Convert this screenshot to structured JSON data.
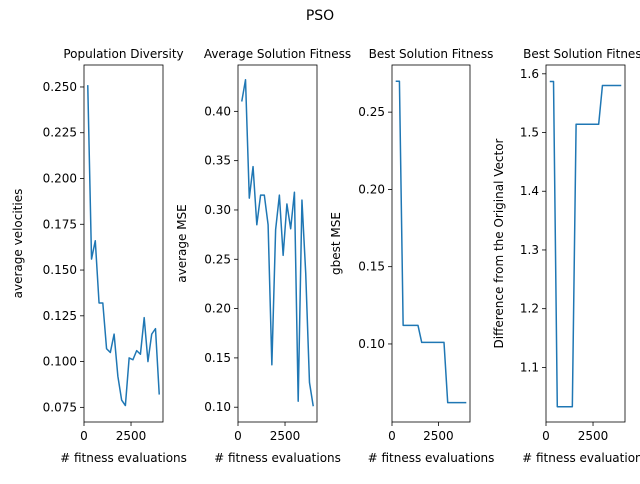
{
  "figure": {
    "suptitle": "PSO",
    "line_color": "#1f77b4"
  },
  "chart_data": [
    {
      "type": "line",
      "title": "Population Diversity",
      "xlabel": "# fitness evaluations",
      "ylabel": "average velocities",
      "xlim": [
        0,
        4200
      ],
      "ylim": [
        0.067,
        0.262
      ],
      "xticks": [
        0,
        2500
      ],
      "yticks": [
        0.075,
        0.1,
        0.125,
        0.15,
        0.175,
        0.2,
        0.225,
        0.25
      ],
      "ytick_labels": [
        "0.075",
        "0.100",
        "0.125",
        "0.150",
        "0.175",
        "0.200",
        "0.225",
        "0.250"
      ],
      "series": [
        {
          "x": [
            200,
            400,
            600,
            800,
            1000,
            1200,
            1400,
            1600,
            1800,
            2000,
            2200,
            2400,
            2600,
            2800,
            3000,
            3200,
            3400,
            3600,
            3800,
            4000
          ],
          "y": [
            0.251,
            0.156,
            0.166,
            0.132,
            0.132,
            0.107,
            0.105,
            0.115,
            0.092,
            0.079,
            0.076,
            0.102,
            0.101,
            0.106,
            0.104,
            0.124,
            0.1,
            0.115,
            0.118,
            0.082
          ]
        }
      ]
    },
    {
      "type": "line",
      "title": "Average Solution Fitness",
      "xlabel": "# fitness evaluations",
      "ylabel": "average MSE",
      "xlim": [
        0,
        4200
      ],
      "ylim": [
        0.085,
        0.447
      ],
      "xticks": [
        0,
        2500
      ],
      "yticks": [
        0.1,
        0.15,
        0.2,
        0.25,
        0.3,
        0.35,
        0.4
      ],
      "ytick_labels": [
        "0.10",
        "0.15",
        "0.20",
        "0.25",
        "0.30",
        "0.35",
        "0.40"
      ],
      "series": [
        {
          "x": [
            200,
            400,
            600,
            800,
            1000,
            1200,
            1400,
            1600,
            1800,
            2000,
            2200,
            2400,
            2600,
            2800,
            3000,
            3200,
            3400,
            3600,
            3800,
            4000
          ],
          "y": [
            0.41,
            0.432,
            0.312,
            0.344,
            0.285,
            0.315,
            0.315,
            0.285,
            0.143,
            0.28,
            0.315,
            0.254,
            0.306,
            0.281,
            0.318,
            0.106,
            0.31,
            0.236,
            0.125,
            0.101
          ]
        }
      ]
    },
    {
      "type": "line",
      "title": "Best Solution Fitness",
      "xlabel": "# fitness evaluations",
      "ylabel": "gbest MSE",
      "xlim": [
        0,
        4200
      ],
      "ylim": [
        0.0495,
        0.2805
      ],
      "xticks": [
        0,
        2500
      ],
      "yticks": [
        0.1,
        0.15,
        0.2,
        0.25
      ],
      "ytick_labels": [
        "0.10",
        "0.15",
        "0.20",
        "0.25"
      ],
      "series": [
        {
          "x": [
            200,
            400,
            600,
            800,
            1000,
            1200,
            1400,
            1600,
            1800,
            2000,
            2200,
            2400,
            2600,
            2800,
            3000,
            3200,
            3400,
            3600,
            3800,
            4000
          ],
          "y": [
            0.27,
            0.27,
            0.112,
            0.112,
            0.112,
            0.112,
            0.112,
            0.101,
            0.101,
            0.101,
            0.101,
            0.101,
            0.101,
            0.101,
            0.062,
            0.062,
            0.062,
            0.062,
            0.062,
            0.062
          ]
        }
      ]
    },
    {
      "type": "line",
      "title": "Best Solution Fitness",
      "xlabel": "# fitness evaluations",
      "ylabel": "Difference from the Original Vector",
      "xlim": [
        0,
        4200
      ],
      "ylim": [
        1.007,
        1.615
      ],
      "xticks": [
        0,
        2500
      ],
      "yticks": [
        1.1,
        1.2,
        1.3,
        1.4,
        1.5,
        1.6
      ],
      "ytick_labels": [
        "1.1",
        "1.2",
        "1.3",
        "1.4",
        "1.5",
        "1.6"
      ],
      "series": [
        {
          "x": [
            200,
            400,
            600,
            800,
            1000,
            1200,
            1400,
            1600,
            1800,
            2000,
            2200,
            2400,
            2600,
            2800,
            3000,
            3200,
            3400,
            3600,
            3800,
            4000
          ],
          "y": [
            1.587,
            1.587,
            1.033,
            1.033,
            1.033,
            1.033,
            1.033,
            1.514,
            1.514,
            1.514,
            1.514,
            1.514,
            1.514,
            1.514,
            1.58,
            1.58,
            1.58,
            1.58,
            1.58,
            1.58
          ]
        }
      ]
    }
  ]
}
